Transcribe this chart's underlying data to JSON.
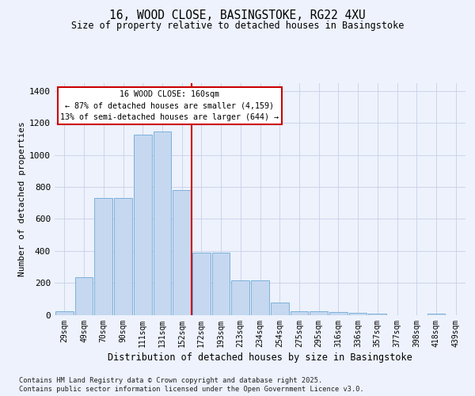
{
  "title1": "16, WOOD CLOSE, BASINGSTOKE, RG22 4XU",
  "title2": "Size of property relative to detached houses in Basingstoke",
  "xlabel": "Distribution of detached houses by size in Basingstoke",
  "ylabel": "Number of detached properties",
  "bar_labels": [
    "29sqm",
    "49sqm",
    "70sqm",
    "90sqm",
    "111sqm",
    "131sqm",
    "152sqm",
    "172sqm",
    "193sqm",
    "213sqm",
    "234sqm",
    "254sqm",
    "275sqm",
    "295sqm",
    "316sqm",
    "336sqm",
    "357sqm",
    "377sqm",
    "398sqm",
    "418sqm",
    "439sqm"
  ],
  "bar_values": [
    20,
    235,
    730,
    730,
    1130,
    1150,
    780,
    390,
    390,
    215,
    215,
    75,
    20,
    20,
    15,
    10,
    5,
    0,
    0,
    5,
    0
  ],
  "bar_color": "#c5d8f0",
  "bar_edge_color": "#6fa8d4",
  "highlight_label": "16 WOOD CLOSE: 160sqm",
  "annotation_line1": "← 87% of detached houses are smaller (4,159)",
  "annotation_line2": "13% of semi-detached houses are larger (644) →",
  "vline_color": "#cc0000",
  "vline_position": 6.5,
  "footer1": "Contains HM Land Registry data © Crown copyright and database right 2025.",
  "footer2": "Contains public sector information licensed under the Open Government Licence v3.0.",
  "bg_color": "#edf2fc",
  "grid_color": "#c8d0e8",
  "ylim": [
    0,
    1450
  ],
  "yticks": [
    0,
    200,
    400,
    600,
    800,
    1000,
    1200,
    1400
  ]
}
